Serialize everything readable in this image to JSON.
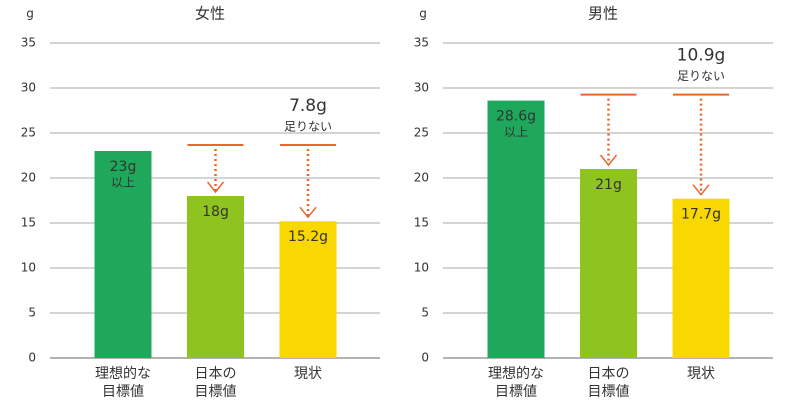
{
  "chart_data": [
    {
      "type": "bar",
      "title": "女性",
      "y_label": "g",
      "categories": [
        "理想的な\n目標値",
        "日本の\n目標値",
        "現状"
      ],
      "values": [
        23,
        18,
        15.2
      ],
      "value_labels": [
        "23g",
        "18g",
        "15.2g"
      ],
      "value_notes": [
        "以上",
        null,
        null
      ],
      "colors": [
        "#1fa85c",
        "#8fc31f",
        "#f8d800"
      ],
      "ylim": [
        0,
        35
      ],
      "yticks": [
        0,
        5,
        10,
        15,
        20,
        25,
        30,
        35
      ],
      "grid": true,
      "annotation": {
        "amount": "7.8g",
        "text": "足りない",
        "color": "#e9672b"
      }
    },
    {
      "type": "bar",
      "title": "男性",
      "y_label": "g",
      "categories": [
        "理想的な\n目標値",
        "日本の\n目標値",
        "現状"
      ],
      "values": [
        28.6,
        21,
        17.7
      ],
      "value_labels": [
        "28.6g",
        "21g",
        "17.7g"
      ],
      "value_notes": [
        "以上",
        null,
        null
      ],
      "colors": [
        "#1fa85c",
        "#8fc31f",
        "#f8d800"
      ],
      "ylim": [
        0,
        35
      ],
      "yticks": [
        0,
        5,
        10,
        15,
        20,
        25,
        30,
        35
      ],
      "grid": true,
      "annotation": {
        "amount": "10.9g",
        "text": "足りない",
        "color": "#e9672b"
      }
    }
  ]
}
